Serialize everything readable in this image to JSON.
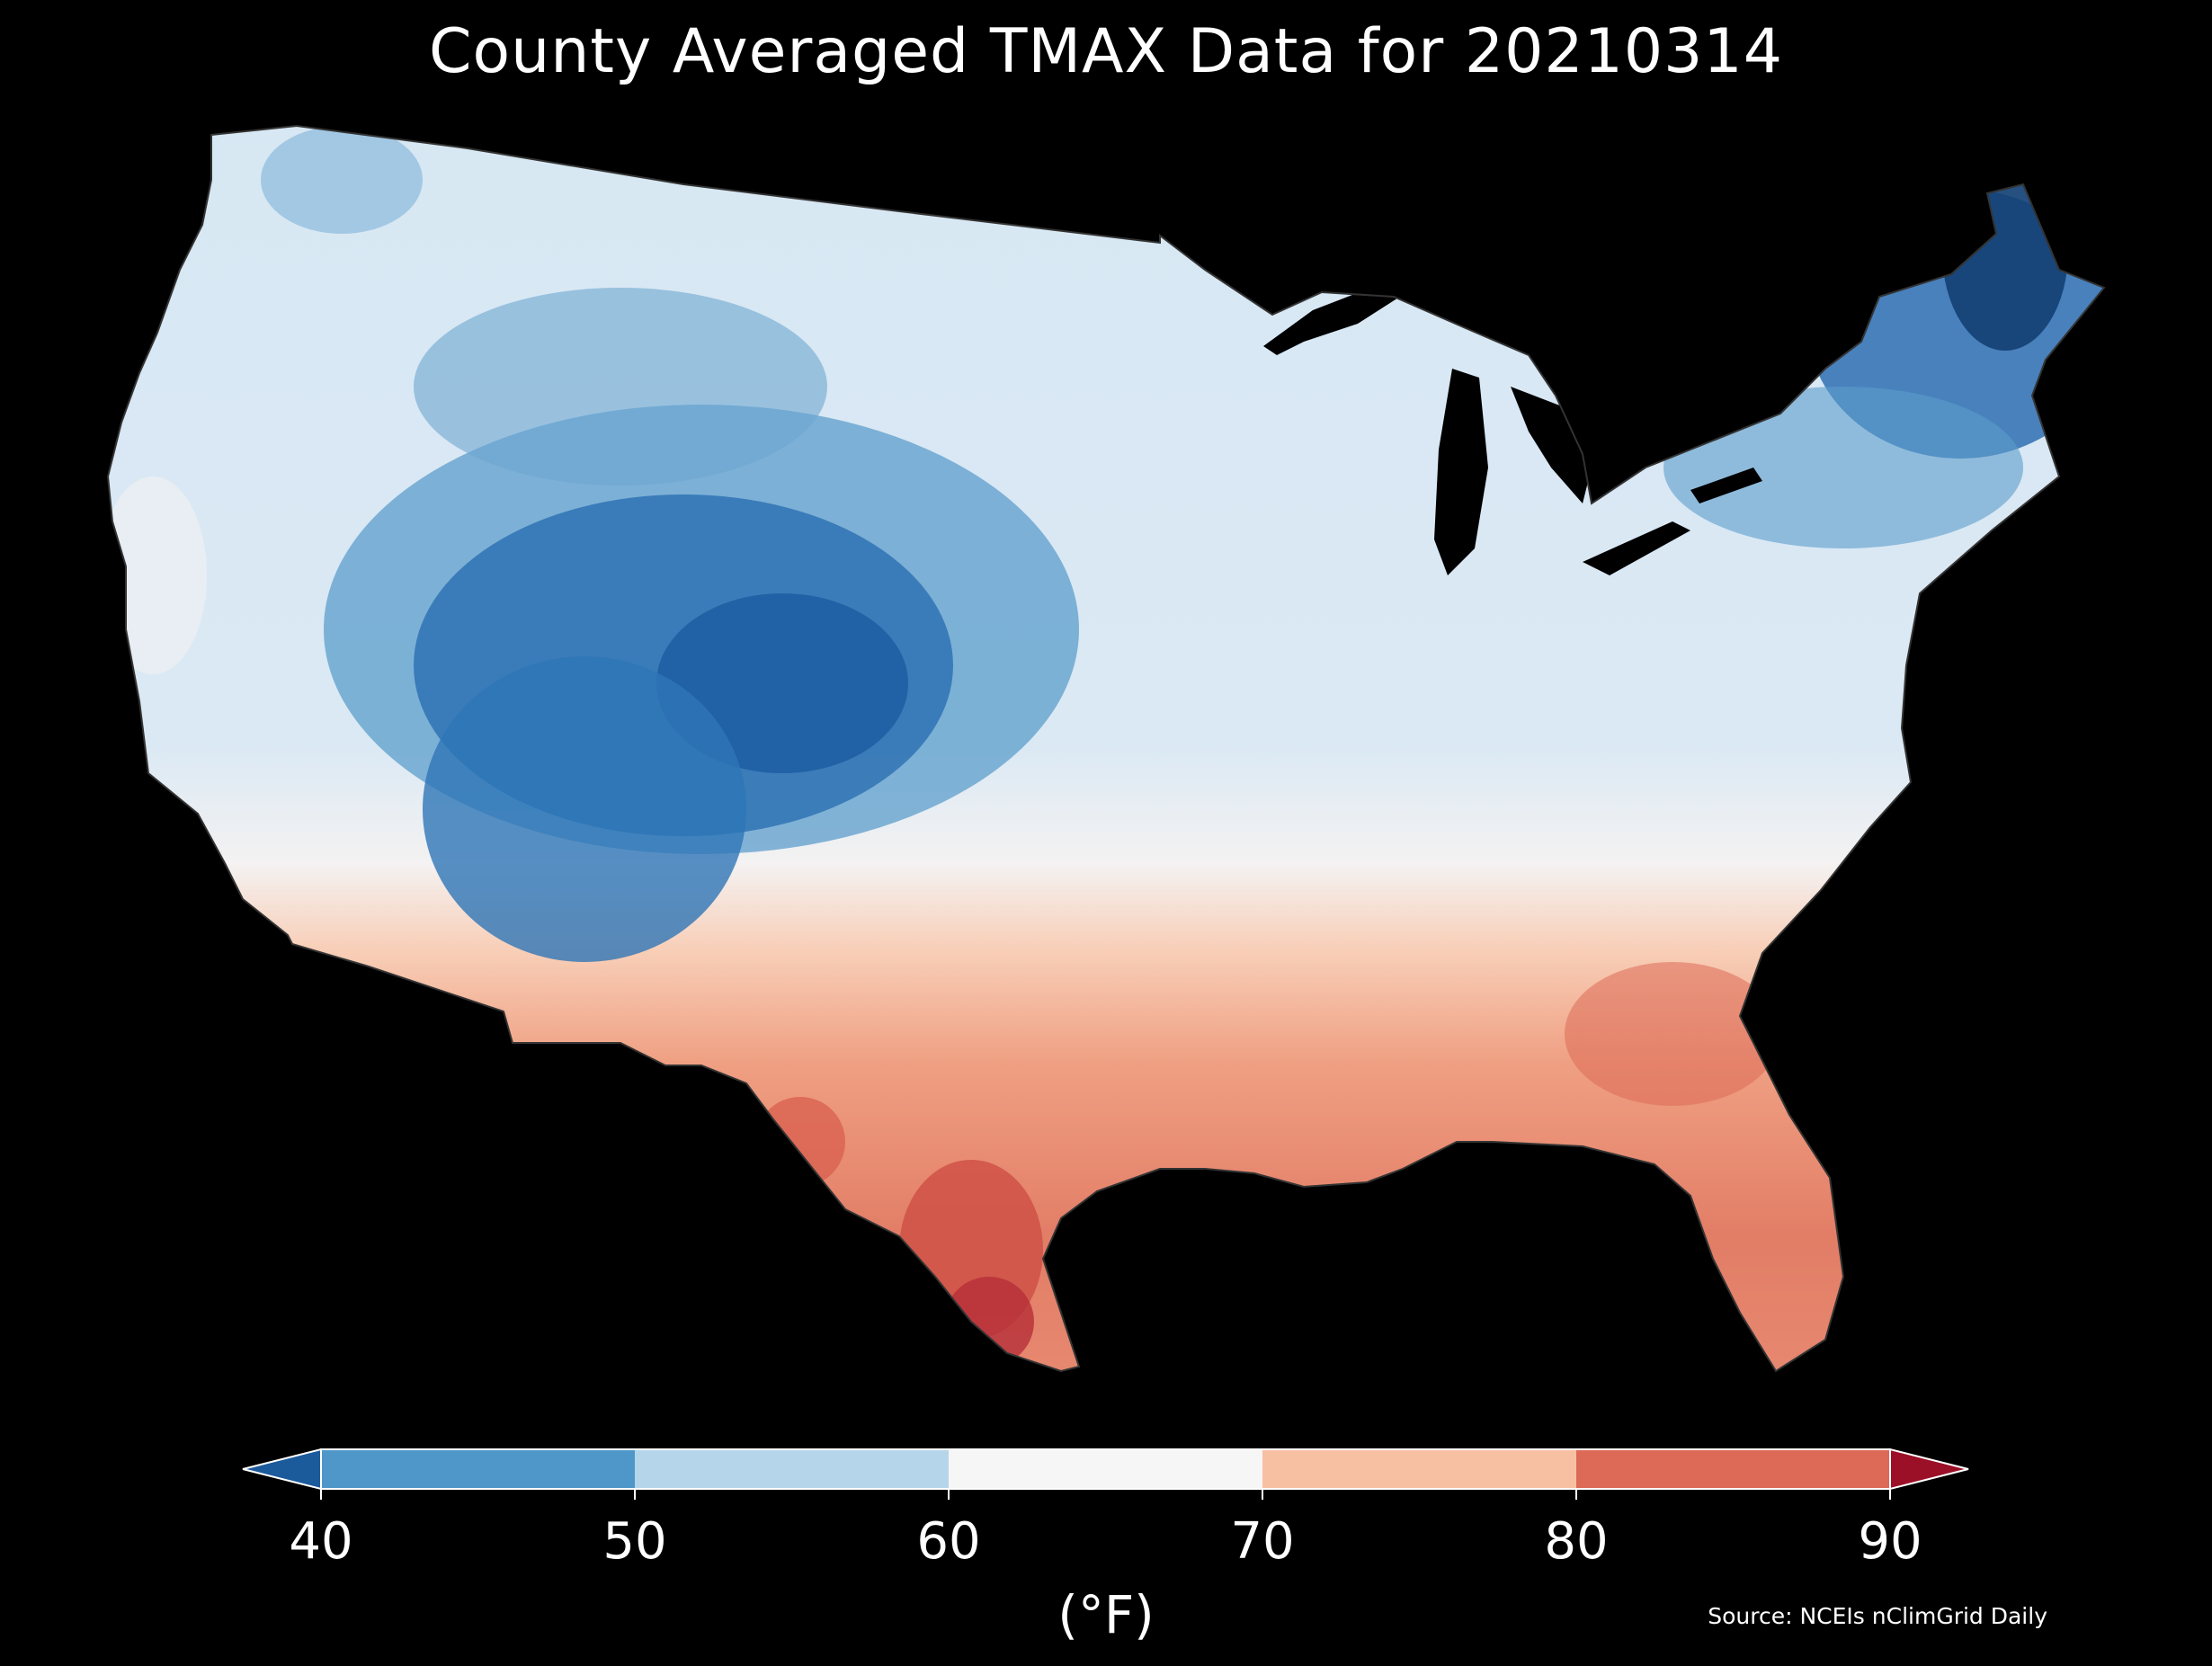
{
  "title": "County Averaged TMAX Data for 20210314",
  "colorbar": {
    "unit_label": "(°F)",
    "ticks": [
      "40",
      "50",
      "60",
      "70",
      "80",
      "90"
    ],
    "bins": [
      {
        "range": "<40",
        "color": "#1b5a9b"
      },
      {
        "range": "40-50",
        "color": "#4f97c9"
      },
      {
        "range": "50-60",
        "color": "#b5d6ea"
      },
      {
        "range": "60-70",
        "color": "#f6f6f6"
      },
      {
        "range": "70-80",
        "color": "#f8c0a2"
      },
      {
        "range": "80-90",
        "color": "#dd6a56"
      },
      {
        "range": ">90",
        "color": "#9b1026"
      }
    ]
  },
  "source": "Source: NCEIs nClimGrid Daily"
}
